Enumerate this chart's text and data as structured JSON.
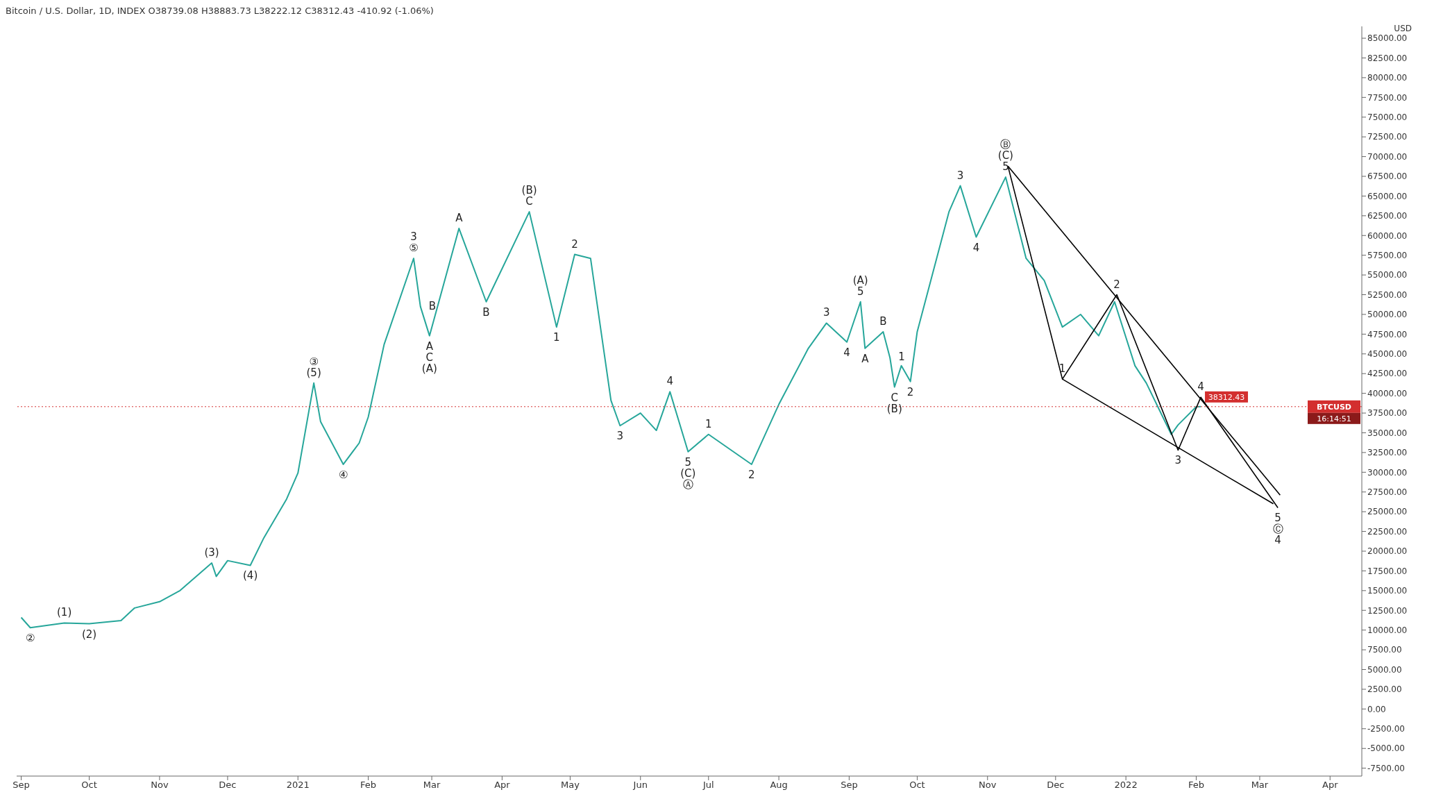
{
  "chart_data": {
    "type": "line",
    "title": "Bitcoin / U.S. Dollar, 1D, INDEX  O38739.08  H38883.73  L38222.12  C38312.43  -410.92 (-1.06%)",
    "ylabel": "USD",
    "x": [
      "2020-09-01",
      "2020-09-05",
      "2020-09-20",
      "2020-10-01",
      "2020-10-15",
      "2020-10-21",
      "2020-11-01",
      "2020-11-10",
      "2020-11-24",
      "2020-11-26",
      "2020-12-01",
      "2020-12-11",
      "2020-12-17",
      "2020-12-27",
      "2021-01-01",
      "2021-01-08",
      "2021-01-11",
      "2021-01-21",
      "2021-01-28",
      "2021-02-01",
      "2021-02-08",
      "2021-02-21",
      "2021-02-24",
      "2021-02-28",
      "2021-03-13",
      "2021-03-25",
      "2021-04-13",
      "2021-04-25",
      "2021-05-03",
      "2021-05-10",
      "2021-05-19",
      "2021-05-23",
      "2021-06-01",
      "2021-06-08",
      "2021-06-14",
      "2021-06-22",
      "2021-07-01",
      "2021-07-20",
      "2021-08-01",
      "2021-08-14",
      "2021-08-22",
      "2021-08-31",
      "2021-09-06",
      "2021-09-08",
      "2021-09-16",
      "2021-09-19",
      "2021-09-21",
      "2021-09-24",
      "2021-09-28",
      "2021-10-01",
      "2021-10-15",
      "2021-10-20",
      "2021-10-27",
      "2021-11-09",
      "2021-11-18",
      "2021-11-26",
      "2021-12-04",
      "2021-12-12",
      "2021-12-20",
      "2021-12-27",
      "2022-01-05",
      "2022-01-10",
      "2022-01-21",
      "2022-01-24",
      "2022-02-01",
      "2022-02-03"
    ],
    "series": [
      {
        "color": "#26a69a",
        "values": [
          11600,
          10300,
          10900,
          10800,
          11200,
          12800,
          13600,
          15000,
          18500,
          16800,
          18800,
          18200,
          21700,
          26600,
          29900,
          41300,
          36400,
          31000,
          33700,
          37000,
          46200,
          57100,
          51000,
          47300,
          60900,
          51600,
          63000,
          48400,
          57600,
          57100,
          39100,
          35900,
          37500,
          35300,
          40200,
          32600,
          34800,
          31000,
          38600,
          45700,
          48900,
          46500,
          51600,
          45700,
          47800,
          44500,
          40800,
          43500,
          41500,
          47800,
          63000,
          66300,
          59800,
          67400,
          57100,
          54300,
          48400,
          50000,
          47300,
          51600,
          43500,
          41300,
          34800,
          36000,
          38300,
          38312.43
        ],
        "value_labels": [
          null,
          null,
          null,
          null,
          null,
          null,
          null,
          null,
          null,
          null,
          null,
          null,
          null,
          null,
          null,
          null,
          null,
          null,
          null,
          null,
          null,
          null,
          null,
          null,
          null,
          null,
          null,
          null,
          null,
          null,
          null,
          null,
          null,
          null,
          null,
          null,
          null,
          null,
          null,
          null,
          null,
          null,
          null,
          null,
          null,
          null,
          null,
          null,
          null,
          null,
          null,
          null,
          null,
          null,
          null,
          null,
          null,
          null,
          null,
          null,
          null,
          null,
          null,
          null,
          null,
          "38312.43"
        ]
      },
      {
        "color": "#000000",
        "x": [
          "2021-11-10",
          "2022-03-10"
        ],
        "values": [
          68800,
          27100
        ]
      },
      {
        "color": "#000000",
        "x": [
          "2021-12-04",
          "2022-03-07"
        ],
        "values": [
          41800,
          26000
        ]
      },
      {
        "color": "#000000",
        "x": [
          "2021-11-10",
          "2021-12-04",
          "2021-12-28",
          "2022-01-24",
          "2022-02-03",
          "2022-03-09"
        ],
        "values": [
          68800,
          41800,
          52500,
          32800,
          39500,
          25500
        ]
      }
    ],
    "xlim": [
      "2020-08-30",
      "2022-04-15"
    ],
    "xticks": [
      {
        "value": "2020-09-01",
        "label": "Sep"
      },
      {
        "value": "2020-10-01",
        "label": "Oct"
      },
      {
        "value": "2020-11-01",
        "label": "Nov"
      },
      {
        "value": "2020-12-01",
        "label": "Dec"
      },
      {
        "value": "2021-01-01",
        "label": "2021"
      },
      {
        "value": "2021-02-01",
        "label": "Feb"
      },
      {
        "value": "2021-03-01",
        "label": "Mar"
      },
      {
        "value": "2021-04-01",
        "label": "Apr"
      },
      {
        "value": "2021-05-01",
        "label": "May"
      },
      {
        "value": "2021-06-01",
        "label": "Jun"
      },
      {
        "value": "2021-07-01",
        "label": "Jul"
      },
      {
        "value": "2021-08-01",
        "label": "Aug"
      },
      {
        "value": "2021-09-01",
        "label": "Sep"
      },
      {
        "value": "2021-10-01",
        "label": "Oct"
      },
      {
        "value": "2021-11-01",
        "label": "Nov"
      },
      {
        "value": "2021-12-01",
        "label": "Dec"
      },
      {
        "value": "2022-01-01",
        "label": "2022"
      },
      {
        "value": "2022-02-01",
        "label": "Feb"
      },
      {
        "value": "2022-03-01",
        "label": "Mar"
      },
      {
        "value": "2022-04-01",
        "label": "Apr"
      }
    ],
    "ylim": [
      -8500,
      86500
    ],
    "yticks": [
      {
        "value": -7500,
        "label": "-7500.00"
      },
      {
        "value": -5000,
        "label": "-5000.00"
      },
      {
        "value": -2500,
        "label": "-2500.00"
      },
      {
        "value": 0,
        "label": "0.00"
      },
      {
        "value": 2500,
        "label": "2500.00"
      },
      {
        "value": 5000,
        "label": "5000.00"
      },
      {
        "value": 7500,
        "label": "7500.00"
      },
      {
        "value": 10000,
        "label": "10000.00"
      },
      {
        "value": 12500,
        "label": "12500.00"
      },
      {
        "value": 15000,
        "label": "15000.00"
      },
      {
        "value": 17500,
        "label": "17500.00"
      },
      {
        "value": 20000,
        "label": "20000.00"
      },
      {
        "value": 22500,
        "label": "22500.00"
      },
      {
        "value": 25000,
        "label": "25000.00"
      },
      {
        "value": 27500,
        "label": "27500.00"
      },
      {
        "value": 30000,
        "label": "30000.00"
      },
      {
        "value": 32500,
        "label": "32500.00"
      },
      {
        "value": 35000,
        "label": "35000.00"
      },
      {
        "value": 37500,
        "label": "37500.00"
      },
      {
        "value": 40000,
        "label": "40000.00"
      },
      {
        "value": 42500,
        "label": "42500.00"
      },
      {
        "value": 45000,
        "label": "45000.00"
      },
      {
        "value": 47500,
        "label": "47500.00"
      },
      {
        "value": 50000,
        "label": "50000.00"
      },
      {
        "value": 52500,
        "label": "52500.00"
      },
      {
        "value": 55000,
        "label": "55000.00"
      },
      {
        "value": 57500,
        "label": "57500.00"
      },
      {
        "value": 60000,
        "label": "60000.00"
      },
      {
        "value": 62500,
        "label": "62500.00"
      },
      {
        "value": 65000,
        "label": "65000.00"
      },
      {
        "value": 67500,
        "label": "67500.00"
      },
      {
        "value": 70000,
        "label": "70000.00"
      },
      {
        "value": 72500,
        "label": "72500.00"
      },
      {
        "value": 75000,
        "label": "75000.00"
      },
      {
        "value": 77500,
        "label": "77500.00"
      },
      {
        "value": 80000,
        "label": "80000.00"
      },
      {
        "value": 82500,
        "label": "82500.00"
      },
      {
        "value": 85000,
        "label": "85000.00"
      }
    ],
    "ref_lines": [
      {
        "axis": "y",
        "value": 38312.43,
        "label": "BTCUSD",
        "color": "#d32f2f",
        "line_style": "dotted"
      }
    ],
    "grid": false,
    "legend": false,
    "marker": "none",
    "line_style": "solid",
    "annotations": [
      "16:14:51",
      {
        "text": "②",
        "x": "2020-09-05",
        "y": 10300
      },
      {
        "text": "(1)",
        "x": "2020-09-20",
        "y": 10900
      },
      {
        "text": "(2)",
        "x": "2020-10-01",
        "y": 10800
      },
      {
        "text": "(3)",
        "x": "2020-11-24",
        "y": 18500
      },
      {
        "text": "(4)",
        "x": "2020-12-11",
        "y": 18200
      },
      {
        "text": "③",
        "x": "2021-01-08",
        "y": 41300
      },
      {
        "text": "(5)",
        "x": "2021-01-08",
        "y": 41300
      },
      {
        "text": "④",
        "x": "2021-01-21",
        "y": 31000
      },
      {
        "text": "3",
        "x": "2021-02-21",
        "y": 57100
      },
      {
        "text": "⑤",
        "x": "2021-02-21",
        "y": 57100
      },
      {
        "text": "B",
        "x": "2021-02-24",
        "y": 51000
      },
      {
        "text": "A",
        "x": "2021-02-28",
        "y": 47300
      },
      {
        "text": "C",
        "x": "2021-02-28",
        "y": 47300
      },
      {
        "text": "(A)",
        "x": "2021-02-28",
        "y": 47300
      },
      {
        "text": "A",
        "x": "2021-03-13",
        "y": 60900
      },
      {
        "text": "B",
        "x": "2021-03-25",
        "y": 51600
      },
      {
        "text": "(B)",
        "x": "2021-04-13",
        "y": 63000
      },
      {
        "text": "C",
        "x": "2021-04-13",
        "y": 63000
      },
      {
        "text": "1",
        "x": "2021-04-25",
        "y": 48400
      },
      {
        "text": "2",
        "x": "2021-05-03",
        "y": 57600
      },
      {
        "text": "3",
        "x": "2021-05-23",
        "y": 35900
      },
      {
        "text": "4",
        "x": "2021-06-14",
        "y": 40200
      },
      {
        "text": "5",
        "x": "2021-06-22",
        "y": 32600
      },
      {
        "text": "(C)",
        "x": "2021-06-22",
        "y": 32600
      },
      {
        "text": "Ⓐ",
        "x": "2021-06-22",
        "y": 32600
      },
      {
        "text": "1",
        "x": "2021-07-01",
        "y": 34800
      },
      {
        "text": "2",
        "x": "2021-07-20",
        "y": 31000
      },
      {
        "text": "3",
        "x": "2021-08-22",
        "y": 48900
      },
      {
        "text": "4",
        "x": "2021-08-31",
        "y": 46500
      },
      {
        "text": "(A)",
        "x": "2021-09-06",
        "y": 51600
      },
      {
        "text": "5",
        "x": "2021-09-06",
        "y": 51600
      },
      {
        "text": "A",
        "x": "2021-09-08",
        "y": 45700
      },
      {
        "text": "B",
        "x": "2021-09-16",
        "y": 47800
      },
      {
        "text": "1",
        "x": "2021-09-19",
        "y": 44500
      },
      {
        "text": "C",
        "x": "2021-09-21",
        "y": 40800
      },
      {
        "text": "(B)",
        "x": "2021-09-21",
        "y": 40800
      },
      {
        "text": "2",
        "x": "2021-09-28",
        "y": 41500
      },
      {
        "text": "3",
        "x": "2021-10-20",
        "y": 66300
      },
      {
        "text": "4",
        "x": "2021-10-27",
        "y": 59800
      },
      {
        "text": "Ⓑ",
        "x": "2021-11-09",
        "y": 67400
      },
      {
        "text": "(C)",
        "x": "2021-11-09",
        "y": 67400
      },
      {
        "text": "5",
        "x": "2021-11-09",
        "y": 67400
      },
      {
        "text": "1",
        "x": "2021-12-04",
        "y": 41800
      },
      {
        "text": "2",
        "x": "2021-12-28",
        "y": 52500
      },
      {
        "text": "3",
        "x": "2022-01-24",
        "y": 32800
      },
      {
        "text": "4",
        "x": "2022-02-03",
        "y": 39500
      },
      {
        "text": "5",
        "x": "2022-03-09",
        "y": 25500
      },
      {
        "text": "Ⓒ",
        "x": "2022-03-09",
        "y": 25500
      },
      {
        "text": "4",
        "x": "2022-03-09",
        "y": 25500
      }
    ]
  }
}
